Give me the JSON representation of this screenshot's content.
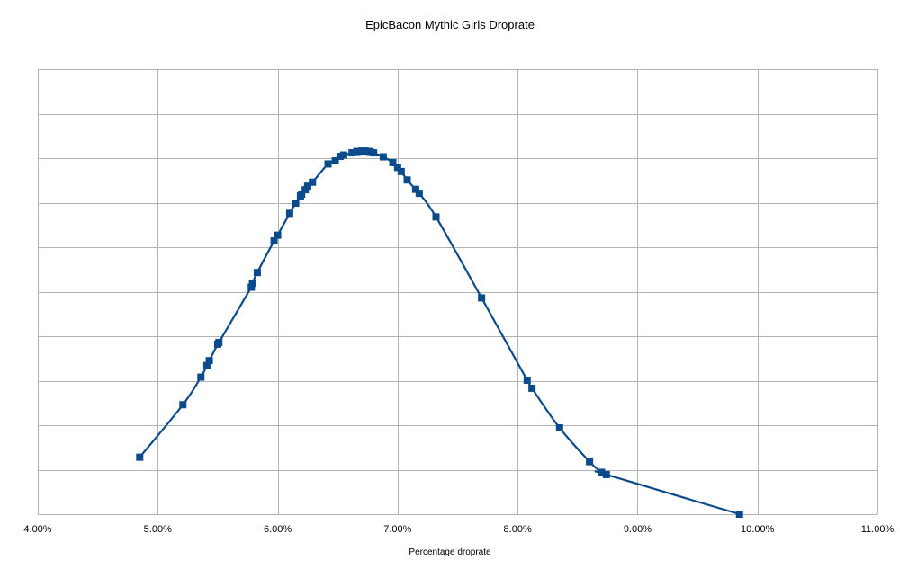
{
  "chart_data": {
    "type": "line",
    "title": "EpicBacon Mythic Girls Droprate",
    "xlabel": "Percentage droprate",
    "ylabel": "",
    "xlim": [
      4.0,
      11.0
    ],
    "ylim": [
      0,
      10
    ],
    "x_tick_labels": [
      "4.00%",
      "5.00%",
      "6.00%",
      "7.00%",
      "8.00%",
      "9.00%",
      "10.00%",
      "11.00%"
    ],
    "x_ticks": [
      4,
      5,
      6,
      7,
      8,
      9,
      10,
      11
    ],
    "y_gridlines": [
      0,
      1,
      2,
      3,
      4,
      5,
      6,
      7,
      8,
      9,
      10
    ],
    "y_tick_labels_shown": false,
    "grid": true,
    "marker": "square",
    "series": [
      {
        "color": "#0b4a8b",
        "x": [
          4.85,
          5.21,
          5.36,
          5.41,
          5.43,
          5.5,
          5.51,
          5.78,
          5.79,
          5.83,
          5.97,
          6.0,
          6.1,
          6.15,
          6.19,
          6.2,
          6.23,
          6.25,
          6.29,
          6.42,
          6.48,
          6.52,
          6.55,
          6.62,
          6.66,
          6.7,
          6.73,
          6.77,
          6.8,
          6.88,
          6.96,
          7.0,
          7.03,
          7.08,
          7.15,
          7.18,
          7.32,
          7.7,
          8.08,
          8.12,
          8.35,
          8.6,
          8.7,
          8.74,
          9.85
        ],
        "y": [
          1.28,
          2.46,
          3.08,
          3.34,
          3.45,
          3.82,
          3.86,
          5.1,
          5.19,
          5.43,
          6.14,
          6.27,
          6.76,
          6.99,
          7.15,
          7.19,
          7.29,
          7.37,
          7.46,
          7.87,
          7.94,
          8.04,
          8.07,
          8.12,
          8.15,
          8.16,
          8.16,
          8.15,
          8.12,
          8.03,
          7.9,
          7.79,
          7.7,
          7.51,
          7.3,
          7.21,
          6.68,
          4.86,
          3.01,
          2.83,
          1.94,
          1.18,
          0.94,
          0.89,
          0.0
        ]
      }
    ]
  }
}
